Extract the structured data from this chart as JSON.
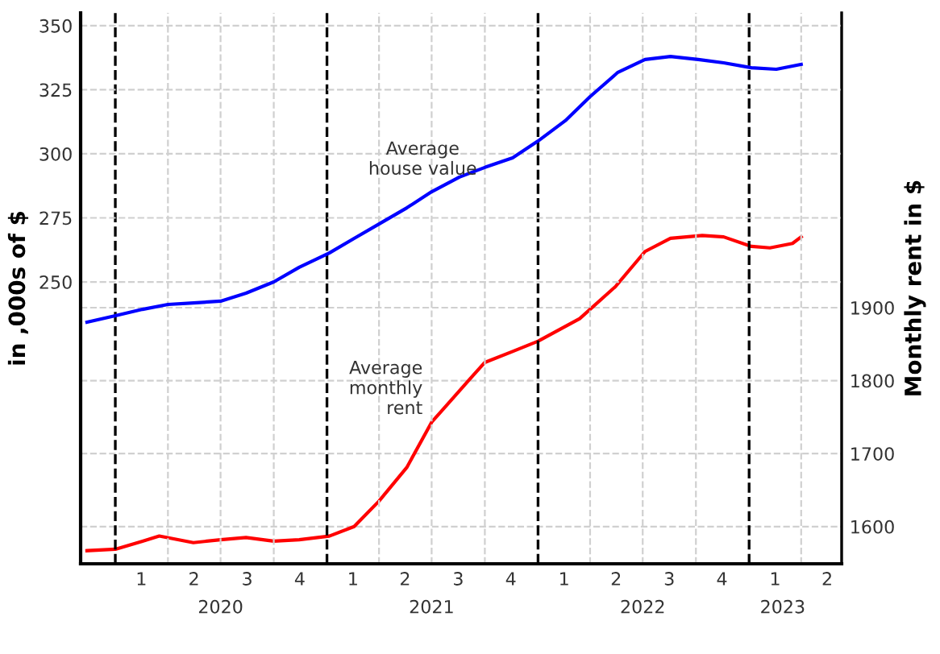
{
  "chart_data": {
    "type": "line",
    "ylabel": "in ,000s of $",
    "y2label": "Monthly rent in $",
    "series": [
      {
        "name": "Average\nhouse value",
        "color": "#0000ff",
        "x": [
          "2019-11-13",
          "2020-01-01",
          "2020-02-17",
          "2020-04-01",
          "2020-05-15",
          "2020-07-01",
          "2020-08-14",
          "2020-10-01",
          "2020-11-14",
          "2021-01-05",
          "2021-02-17",
          "2021-04-01",
          "2021-05-19",
          "2021-07-01",
          "2021-08-18",
          "2021-10-01",
          "2021-11-18",
          "2022-01-01",
          "2022-02-17",
          "2022-04-01",
          "2022-05-19",
          "2022-07-05",
          "2022-08-18",
          "2022-10-05",
          "2022-11-18",
          "2023-01-05",
          "2023-02-17",
          "2023-04-01"
        ],
        "values": [
          234.3,
          236.8,
          239.3,
          241.2,
          241.8,
          242.5,
          245.6,
          250,
          255.7,
          261.3,
          267,
          272.6,
          278.9,
          285.2,
          290.9,
          294.7,
          298.4,
          305,
          312.9,
          322.3,
          331.8,
          336.8,
          338,
          336.8,
          335.5,
          333.6,
          333,
          334.9
        ]
      },
      {
        "name": "Average\nmonthly\nrent",
        "color": "#ff0000",
        "axis": "y2",
        "x": [
          "2019-11-13",
          "2020-01-01",
          "2020-02-17",
          "2020-03-17",
          "2020-05-15",
          "2020-07-01",
          "2020-08-14",
          "2020-10-01",
          "2020-11-14",
          "2021-01-05",
          "2021-02-17",
          "2021-04-01",
          "2021-05-19",
          "2021-07-01",
          "2021-09-06",
          "2021-10-01",
          "2021-11-18",
          "2022-01-01",
          "2022-03-14",
          "2022-05-15",
          "2022-07-05",
          "2022-08-18",
          "2022-10-12",
          "2022-11-18",
          "2023-01-05",
          "2023-02-06",
          "2023-03-17",
          "2023-04-01"
        ],
        "values": [
          1567,
          1569,
          1580,
          1587,
          1578,
          1582,
          1585,
          1580,
          1582,
          1587,
          1600,
          1635,
          1681,
          1743,
          1803,
          1825,
          1840,
          1854,
          1885,
          1929,
          1977,
          1995,
          1999,
          1997,
          1984,
          1982,
          1988,
          1997
        ]
      }
    ],
    "xlim": [
      "2019-11-02",
      "2023-06-10"
    ],
    "xticks": [
      {
        "value": "2020-02-15",
        "label": "1"
      },
      {
        "value": "2020-05-16",
        "label": "2"
      },
      {
        "value": "2020-08-16",
        "label": "3"
      },
      {
        "value": "2020-11-15",
        "label": "4"
      },
      {
        "value": "2021-02-15",
        "label": "1"
      },
      {
        "value": "2021-05-16",
        "label": "2"
      },
      {
        "value": "2021-08-16",
        "label": "3"
      },
      {
        "value": "2021-11-15",
        "label": "4"
      },
      {
        "value": "2022-02-15",
        "label": "1"
      },
      {
        "value": "2022-05-16",
        "label": "2"
      },
      {
        "value": "2022-08-16",
        "label": "3"
      },
      {
        "value": "2022-11-15",
        "label": "4"
      },
      {
        "value": "2023-02-15",
        "label": "1"
      },
      {
        "value": "2023-05-16",
        "label": "2"
      }
    ],
    "x2lim": [
      "2019-11-02",
      "2023-06-10"
    ],
    "x2ticks": [
      {
        "value": "2020-07-01",
        "label": "2020"
      },
      {
        "value": "2021-07-01",
        "label": "2021"
      },
      {
        "value": "2022-07-01",
        "label": "2022"
      },
      {
        "value": "2023-02-28",
        "label": "2023"
      }
    ],
    "ylim": [
      140,
      355
    ],
    "yticks": [
      250,
      275,
      300,
      325,
      350
    ],
    "y2lim": [
      1549,
      2304
    ],
    "y2ticks": [
      1600,
      1700,
      1800,
      1900
    ],
    "grid": "y",
    "ref_lines": [
      {
        "axis": "x",
        "value": "2020-01-01",
        "color": "#000000",
        "line_style": "dashed"
      },
      {
        "axis": "x",
        "value": "2021-01-01",
        "color": "#000000",
        "line_style": "dashed"
      },
      {
        "axis": "x",
        "value": "2022-01-01",
        "color": "#000000",
        "line_style": "dashed"
      },
      {
        "axis": "x",
        "value": "2023-01-01",
        "color": "#000000",
        "line_style": "dashed"
      },
      {
        "axis": "x",
        "value": "2020-04-01",
        "color": "#d0d0d0",
        "line_style": "dashed"
      },
      {
        "axis": "x",
        "value": "2020-07-01",
        "color": "#d0d0d0",
        "line_style": "dashed"
      },
      {
        "axis": "x",
        "value": "2020-10-01",
        "color": "#d0d0d0",
        "line_style": "dashed"
      },
      {
        "axis": "x",
        "value": "2021-04-01",
        "color": "#d0d0d0",
        "line_style": "dashed"
      },
      {
        "axis": "x",
        "value": "2021-07-01",
        "color": "#d0d0d0",
        "line_style": "dashed"
      },
      {
        "axis": "x",
        "value": "2021-10-01",
        "color": "#d0d0d0",
        "line_style": "dashed"
      },
      {
        "axis": "x",
        "value": "2022-04-01",
        "color": "#d0d0d0",
        "line_style": "dashed"
      },
      {
        "axis": "x",
        "value": "2022-07-01",
        "color": "#d0d0d0",
        "line_style": "dashed"
      },
      {
        "axis": "x",
        "value": "2022-10-01",
        "color": "#d0d0d0",
        "line_style": "dashed"
      },
      {
        "axis": "x",
        "value": "2023-04-01",
        "color": "#d0d0d0",
        "line_style": "dashed"
      }
    ]
  }
}
